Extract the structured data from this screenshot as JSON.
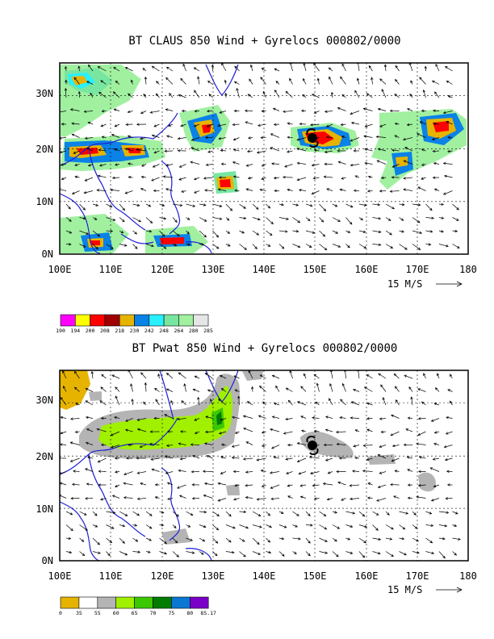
{
  "panels": [
    {
      "title": "BT CLAUS 850 Wind + Gyrelocs 000802/0000",
      "colorbar": {
        "colors": [
          "#ff00ff",
          "#ffff00",
          "#ff0000",
          "#a00000",
          "#e6b400",
          "#0a82e6",
          "#28f0ff",
          "#78e6a0",
          "#a0f0a0",
          "#e6e6e6"
        ],
        "labels": [
          "190",
          "194",
          "200",
          "208",
          "218",
          "230",
          "242",
          "248",
          "264",
          "280",
          "285"
        ]
      }
    },
    {
      "title": "BT Pwat 850 Wind + Gyrelocs 000802/0000",
      "colorbar": {
        "colors": [
          "#e6b400",
          "#ffffff",
          "#b4b4b4",
          "#a0f000",
          "#3cc800",
          "#007d00",
          "#0a78d2",
          "#7a00c8"
        ],
        "labels": [
          "0",
          "35",
          "55",
          "60",
          "65",
          "70",
          "75",
          "80",
          "85.17"
        ]
      }
    }
  ],
  "axes": {
    "x_ticks": [
      "100E",
      "110E",
      "120E",
      "130E",
      "140E",
      "150E",
      "160E",
      "170E",
      "180"
    ],
    "y_ticks": [
      "0N",
      "10N",
      "20N",
      "30N"
    ]
  },
  "vector_reference": "15 M/S",
  "gyre_location": {
    "lon": 150,
    "lat": 22
  }
}
